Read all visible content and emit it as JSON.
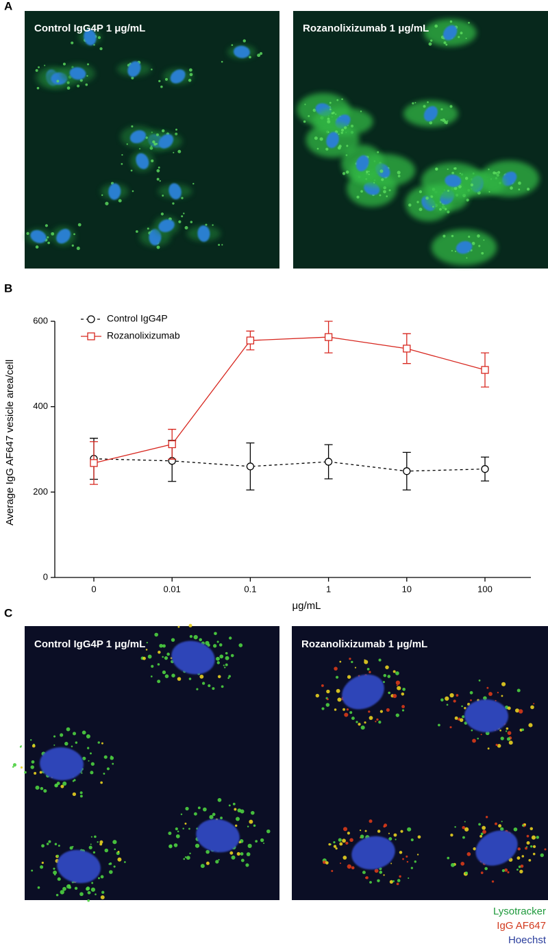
{
  "panel_labels": [
    "A",
    "B",
    "C"
  ],
  "panel_a": {
    "left_label": "Control IgG4P 1 μg/mL",
    "right_label": "Rozanolixizumab 1 μg/mL"
  },
  "chart_data": {
    "type": "line",
    "x_label": "μg/mL",
    "y_label": "Average IgG AF647 vesicle area/cell",
    "categories": [
      "0",
      "0.01",
      "0.1",
      "1",
      "10",
      "100"
    ],
    "ylim": [
      0,
      600
    ],
    "yticks": [
      0,
      200,
      400,
      600
    ],
    "legend_position": "upper left",
    "series": [
      {
        "name": "Control IgG4P",
        "color": "#000000",
        "line_style": "dashed",
        "marker": "circle",
        "values": [
          278,
          273,
          260,
          271,
          249,
          254
        ],
        "errors": [
          48,
          48,
          55,
          40,
          44,
          28
        ]
      },
      {
        "name": "Rozanolixizumab",
        "color": "#d7261e",
        "line_style": "solid",
        "marker": "square",
        "values": [
          268,
          312,
          555,
          563,
          536,
          486
        ],
        "errors": [
          50,
          35,
          22,
          37,
          35,
          40
        ]
      }
    ]
  },
  "panel_c": {
    "left_label": "Control IgG4P 1 μg/mL",
    "right_label": "Rozanolixizumab 1 μg/mL"
  },
  "channel_legend": [
    {
      "name": "Lysotracker",
      "color": "#1f9a3c"
    },
    {
      "name": "IgG AF647",
      "color": "#d23a1e"
    },
    {
      "name": "Hoechst",
      "color": "#2a3d9c"
    }
  ]
}
